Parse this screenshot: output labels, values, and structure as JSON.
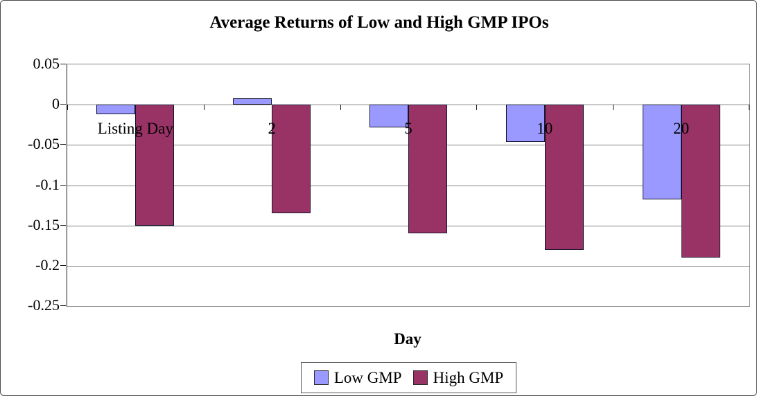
{
  "figure": {
    "title": "Average Returns of Low and High GMP IPOs",
    "x_axis_title": "Day"
  },
  "y_axis": {
    "tick_labels": [
      "0.05",
      "0",
      "-0.05",
      "-0.1",
      "-0.15",
      "-0.2",
      "-0.25"
    ],
    "tick_values": [
      0.05,
      0,
      -0.05,
      -0.1,
      -0.15,
      -0.2,
      -0.25
    ]
  },
  "legend": {
    "position": "bottom",
    "items": [
      {
        "label": "Low GMP",
        "color": "#9999FF"
      },
      {
        "label": "High GMP",
        "color": "#993366"
      }
    ]
  },
  "chart_data": {
    "type": "bar",
    "title": "Average Returns of Low and High GMP IPOs",
    "categories": [
      "Listing Day",
      "2",
      "5",
      "10",
      "20"
    ],
    "series": [
      {
        "name": "Low GMP",
        "color": "#9999FF",
        "values": [
          -0.012,
          0.008,
          -0.028,
          -0.046,
          -0.118
        ]
      },
      {
        "name": "High GMP",
        "color": "#993366",
        "values": [
          -0.15,
          -0.135,
          -0.16,
          -0.18,
          -0.19
        ]
      }
    ],
    "xlabel": "Day",
    "ylabel": "",
    "ylim": [
      -0.25,
      0.05
    ],
    "grid": true,
    "legend_position": "bottom",
    "colors": {
      "grid": "#808080",
      "axis": "#000000",
      "low_gmp": "#9999FF",
      "high_gmp": "#993366"
    }
  }
}
